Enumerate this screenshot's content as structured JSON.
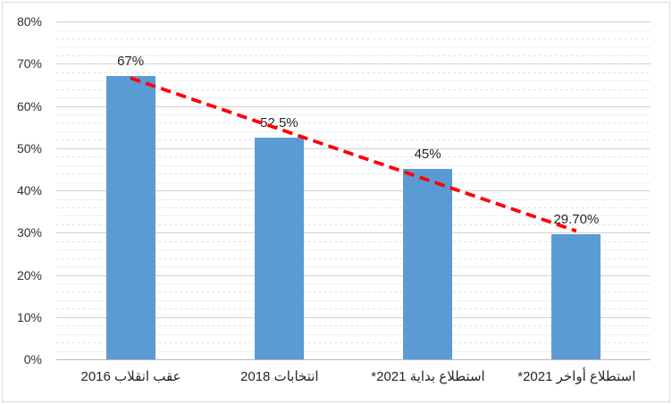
{
  "chart_data": {
    "type": "bar",
    "title": "",
    "xlabel": "",
    "ylabel": "",
    "categories": [
      "عقب انقلاب 2016",
      "انتخابات 2018",
      "استطلاع بداية 2021*",
      "استطلاع أواخر 2021*"
    ],
    "values": [
      67,
      52.5,
      45,
      29.7
    ],
    "data_labels": [
      "67%",
      "52.5%",
      "45%",
      "29.70%"
    ],
    "y_tick_labels": [
      "0%",
      "10%",
      "20%",
      "30%",
      "40%",
      "50%",
      "60%",
      "70%",
      "80%"
    ],
    "ylim": [
      0,
      80
    ],
    "y_major_step": 10,
    "y_minor_step": 2,
    "grid": "horizontal major+minor",
    "legend_position": "none",
    "bar_color": "#5B9BD5",
    "axis_text_color": "#262626",
    "trendline": {
      "type": "linear",
      "style": "dashed",
      "color": "#FF0000",
      "from_value": 66.6,
      "to_value": 30.4
    },
    "direction": "rtl"
  }
}
